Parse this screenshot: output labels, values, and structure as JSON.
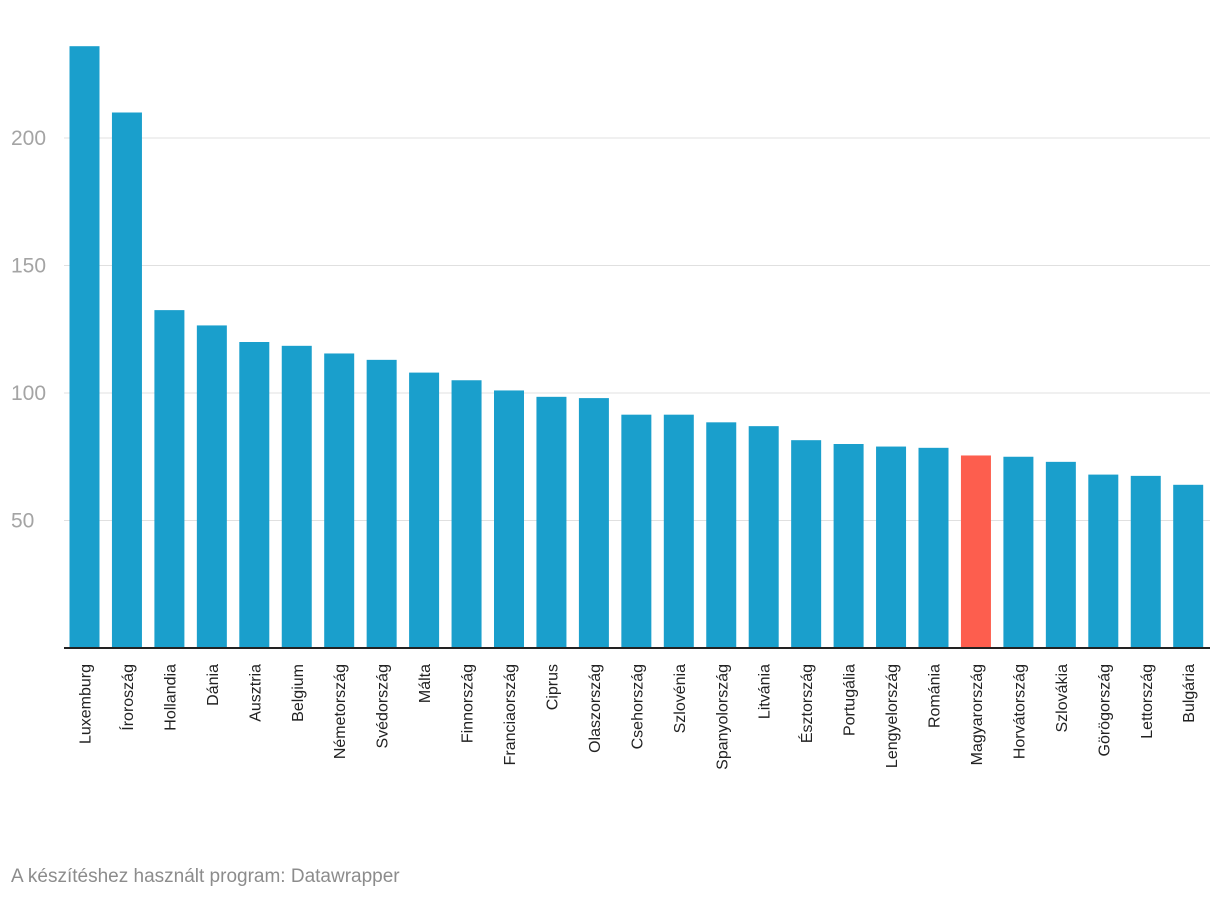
{
  "chart_data": {
    "type": "bar",
    "title": "",
    "xlabel": "",
    "ylabel": "",
    "ylim": [
      0,
      240
    ],
    "yticks": [
      50,
      100,
      150,
      200
    ],
    "grid": true,
    "categories": [
      "Luxemburg",
      "Íroroszág",
      "Hollandia",
      "Dánia",
      "Ausztria",
      "Belgium",
      "Németország",
      "Svédország",
      "Málta",
      "Finnország",
      "Franciaország",
      "Ciprus",
      "Olaszország",
      "Csehország",
      "Szlovénia",
      "Spanyolország",
      "Litvánia",
      "Észtország",
      "Portugália",
      "Lengyelország",
      "Románia",
      "Magyarország",
      "Horvátország",
      "Szlovákia",
      "Görögország",
      "Lettország",
      "Bulgária"
    ],
    "values": [
      236,
      210,
      132.5,
      126.5,
      120,
      118.5,
      115.5,
      113,
      108,
      105,
      101,
      98.5,
      98,
      91.5,
      91.5,
      88.5,
      87,
      81.5,
      80,
      79,
      78.5,
      75.5,
      75,
      73,
      68,
      67.5,
      64
    ],
    "highlight_category": "Magyarország",
    "colors": {
      "bar": "#1a9fcc",
      "highlight": "#fd5e4e"
    }
  },
  "footer": {
    "credit": "A készítéshez használt program: Datawrapper"
  }
}
